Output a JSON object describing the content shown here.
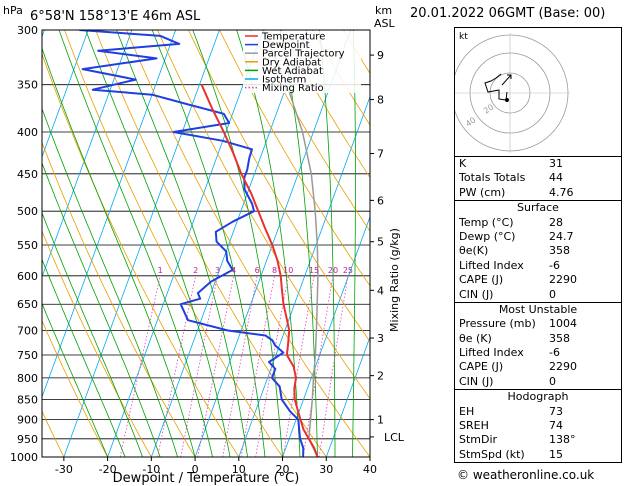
{
  "header": {
    "location": "6°58'N  158°13'E  46m  ASL",
    "datetime": "20.01.2022  06GMT  (Base: 00)",
    "pressure_unit": "hPa",
    "height_unit": "km",
    "height_unit2": "ASL"
  },
  "legend": [
    {
      "label": "Temperature",
      "color": "#e8312f"
    },
    {
      "label": "Dewpoint",
      "color": "#1f3fe0"
    },
    {
      "label": "Parcel Trajectory",
      "color": "#999999"
    },
    {
      "label": "Dry Adiabat",
      "color": "#e8a000"
    },
    {
      "label": "Wet Adiabat",
      "color": "#00a000"
    },
    {
      "label": "Isotherm",
      "color": "#00aaee"
    },
    {
      "label": "Mixing Ratio",
      "color": "#e040c0"
    }
  ],
  "chart_data": {
    "type": "line",
    "title": "",
    "xlabel": "Dewpoint / Temperature (°C)",
    "ylabel": "hPa",
    "y2label": "Mixing Ratio (g/kg)",
    "xlim": [
      -35,
      40
    ],
    "ylim": [
      1000,
      300
    ],
    "log_y": true,
    "skew_per_decade_c": 68,
    "x_ticks": [
      -30,
      -20,
      -10,
      0,
      10,
      20,
      30,
      40
    ],
    "pressure_levels": [
      300,
      350,
      400,
      450,
      500,
      550,
      600,
      650,
      700,
      750,
      800,
      850,
      900,
      950,
      1000
    ],
    "height_ticks": [
      {
        "label": "9",
        "p": 322
      },
      {
        "label": "8",
        "p": 365
      },
      {
        "label": "7",
        "p": 425
      },
      {
        "label": "6",
        "p": 485
      },
      {
        "label": "5",
        "p": 545
      },
      {
        "label": "4",
        "p": 625
      },
      {
        "label": "3",
        "p": 715
      },
      {
        "label": "2",
        "p": 795
      },
      {
        "label": "1",
        "p": 900
      },
      {
        "label": "LCL",
        "p": 945
      }
    ],
    "mixing_ratio_labels": [
      "1",
      "2",
      "3",
      "4",
      "6",
      "8",
      "10",
      "15",
      "20",
      "25"
    ],
    "mixing_ratio_values": [
      1,
      2,
      3,
      4,
      6,
      8,
      10,
      15,
      20,
      25
    ],
    "series": [
      {
        "name": "Temperature",
        "color": "#e8312f",
        "p": [
          1000,
          975,
          950,
          925,
          900,
          875,
          850,
          825,
          800,
          775,
          750,
          725,
          700,
          675,
          650,
          625,
          600,
          575,
          550,
          525,
          500,
          475,
          450,
          425,
          400,
          375,
          350
        ],
        "t": [
          28,
          26.5,
          24.5,
          22.5,
          21,
          19.5,
          18,
          17,
          16.5,
          15,
          12.5,
          11.8,
          11,
          9.3,
          7.5,
          6,
          4.5,
          2.5,
          0,
          -3,
          -6,
          -9.2,
          -13,
          -16.5,
          -20.5,
          -25,
          -29.5
        ]
      },
      {
        "name": "Dewpoint",
        "color": "#1f3fe0",
        "p": [
          1000,
          975,
          950,
          925,
          900,
          880,
          850,
          820,
          800,
          780,
          765,
          745,
          730,
          720,
          710,
          700,
          680,
          650,
          640,
          630,
          610,
          590,
          575,
          560,
          545,
          530,
          515,
          500,
          490,
          470,
          455,
          445,
          430,
          420,
          410,
          400,
          390,
          385,
          380,
          370,
          360,
          355,
          345,
          335,
          325,
          318,
          312,
          305,
          300
        ],
        "t": [
          24.7,
          24,
          22.5,
          21.5,
          20.5,
          18,
          15,
          13.5,
          11,
          11,
          9,
          11.5,
          9,
          8,
          6,
          -3,
          -13,
          -16,
          -12,
          -13,
          -11,
          -7,
          -9,
          -10,
          -13,
          -14,
          -11,
          -7,
          -8,
          -11,
          -12,
          -12,
          -12.5,
          -12.6,
          -20,
          -32,
          -20,
          -21,
          -22,
          -31,
          -40,
          -54,
          -45,
          -58,
          -42,
          -56,
          -38,
          -43,
          -62
        ]
      },
      {
        "name": "Parcel Trajectory",
        "color": "#999999",
        "p": [
          1000,
          950,
          900,
          850,
          800,
          750,
          700,
          650,
          600,
          550,
          500,
          450,
          400,
          350,
          300
        ],
        "t": [
          28,
          24.5,
          23.3,
          22,
          20.5,
          19,
          17.2,
          15.2,
          13,
          10.3,
          7,
          3,
          -2.5,
          -10,
          -20
        ]
      }
    ]
  },
  "indices": [
    {
      "label": "K",
      "value": "31"
    },
    {
      "label": "Totals Totals",
      "value": "44"
    },
    {
      "label": "PW (cm)",
      "value": "4.76"
    }
  ],
  "surface": {
    "heading": "Surface",
    "rows": [
      {
        "label": "Temp (°C)",
        "value": "28"
      },
      {
        "label": "Dewp (°C)",
        "value": "24.7"
      },
      {
        "label": "θe(K)",
        "value": "358"
      },
      {
        "label": "Lifted Index",
        "value": "-6"
      },
      {
        "label": "CAPE (J)",
        "value": "2290"
      },
      {
        "label": "CIN (J)",
        "value": "0"
      }
    ]
  },
  "most_unstable": {
    "heading": "Most Unstable",
    "rows": [
      {
        "label": "Pressure (mb)",
        "value": "1004"
      },
      {
        "label": "θe (K)",
        "value": "358"
      },
      {
        "label": "Lifted Index",
        "value": "-6"
      },
      {
        "label": "CAPE (J)",
        "value": "2290"
      },
      {
        "label": "CIN (J)",
        "value": "0"
      }
    ]
  },
  "hodograph": {
    "heading": "Hodograph",
    "box_label": "kt",
    "ring_labels": [
      "20",
      "40"
    ],
    "rows": [
      {
        "label": "EH",
        "value": "73"
      },
      {
        "label": "SREH",
        "value": "74"
      },
      {
        "label": "StmDir",
        "value": "138°"
      },
      {
        "label": "StmSpd (kt)",
        "value": "15"
      }
    ]
  },
  "footer": "© weatheronline.co.uk"
}
